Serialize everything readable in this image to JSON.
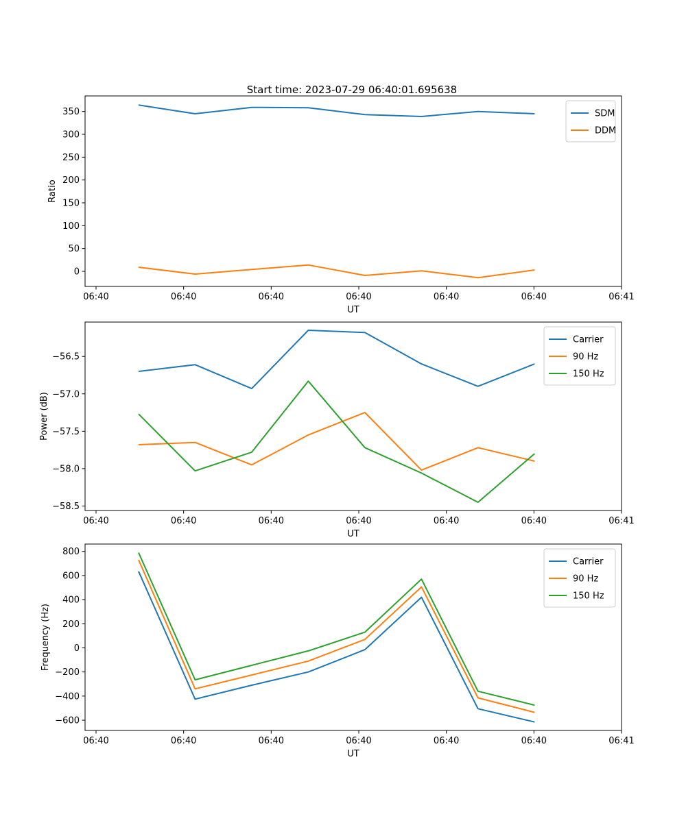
{
  "figure": {
    "title": "Start time: 2023-07-29 06:40:01.695638"
  },
  "colors": {
    "blue": "#1f77b4",
    "orange": "#ff7f0e",
    "green": "#2ca02c",
    "legend_border": "#cccccc",
    "spine": "#000000"
  },
  "chart_data": [
    {
      "type": "line",
      "title": "",
      "xlabel": "UT",
      "ylabel": "Ratio",
      "x_tick_labels": [
        "06:40",
        "06:40",
        "06:40",
        "06:40",
        "06:40",
        "06:40",
        "06:41"
      ],
      "y_ticks": [
        0,
        50,
        100,
        150,
        200,
        250,
        300,
        350
      ],
      "y_tick_labels": [
        "0",
        "50",
        "100",
        "150",
        "200",
        "250",
        "300",
        "350"
      ],
      "ylim": [
        -33,
        384
      ],
      "grid": false,
      "legend": {
        "position": "upper right",
        "entries": [
          "SDM",
          "DDM"
        ]
      },
      "series": [
        {
          "name": "SDM",
          "color": "#1f77b4",
          "values": [
            364,
            345,
            359,
            358,
            343,
            339,
            350,
            345
          ]
        },
        {
          "name": "DDM",
          "color": "#ff7f0e",
          "values": [
            9,
            -6,
            4,
            14,
            -9,
            1,
            -14,
            3
          ]
        }
      ]
    },
    {
      "type": "line",
      "title": "",
      "xlabel": "UT",
      "ylabel": "Power (dB)",
      "x_tick_labels": [
        "06:40",
        "06:40",
        "06:40",
        "06:40",
        "06:40",
        "06:40",
        "06:41"
      ],
      "y_ticks": [
        -58.5,
        -58.0,
        -57.5,
        -57.0,
        -56.5
      ],
      "y_tick_labels": [
        "−58.5",
        "−58.0",
        "−57.5",
        "−57.0",
        "−56.5"
      ],
      "ylim": [
        -58.56,
        -56.04
      ],
      "grid": false,
      "legend": {
        "position": "upper right",
        "entries": [
          "Carrier",
          "90 Hz",
          "150 Hz"
        ]
      },
      "series": [
        {
          "name": "Carrier",
          "color": "#1f77b4",
          "values": [
            -56.7,
            -56.61,
            -56.93,
            -56.15,
            -56.18,
            -56.6,
            -56.9,
            -56.6
          ]
        },
        {
          "name": "90 Hz",
          "color": "#ff7f0e",
          "values": [
            -57.68,
            -57.65,
            -57.95,
            -57.55,
            -57.25,
            -58.02,
            -57.72,
            -57.9
          ]
        },
        {
          "name": "150 Hz",
          "color": "#2ca02c",
          "values": [
            -57.27,
            -58.03,
            -57.78,
            -56.83,
            -57.72,
            -58.06,
            -58.45,
            -57.8
          ]
        }
      ]
    },
    {
      "type": "line",
      "title": "",
      "xlabel": "UT",
      "ylabel": "Frequency (Hz)",
      "x_tick_labels": [
        "06:40",
        "06:40",
        "06:40",
        "06:40",
        "06:40",
        "06:40",
        "06:41"
      ],
      "y_ticks": [
        -600,
        -400,
        -200,
        0,
        200,
        400,
        600,
        800
      ],
      "y_tick_labels": [
        "−600",
        "−400",
        "−200",
        "0",
        "200",
        "400",
        "600",
        "800"
      ],
      "ylim": [
        -685,
        861
      ],
      "grid": false,
      "legend": {
        "position": "upper right",
        "entries": [
          "Carrier",
          "90 Hz",
          "150 Hz"
        ]
      },
      "series": [
        {
          "name": "Carrier",
          "color": "#1f77b4",
          "values": [
            635,
            -425,
            -310,
            -200,
            -15,
            420,
            -505,
            -615
          ]
        },
        {
          "name": "90 Hz",
          "color": "#ff7f0e",
          "values": [
            730,
            -340,
            -225,
            -110,
            70,
            505,
            -415,
            -535
          ]
        },
        {
          "name": "150 Hz",
          "color": "#2ca02c",
          "values": [
            790,
            -265,
            -145,
            -25,
            130,
            570,
            -360,
            -475
          ]
        }
      ]
    }
  ]
}
